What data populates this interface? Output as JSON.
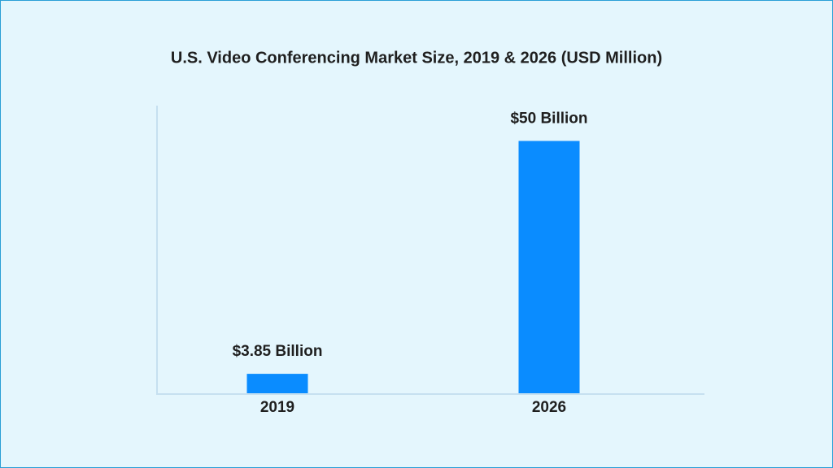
{
  "chart_data": {
    "type": "bar",
    "title": "U.S. Video Conferencing Market Size, 2019 & 2026 (USD Million)",
    "categories": [
      "2019",
      "2026"
    ],
    "values": [
      3.85,
      50
    ],
    "value_labels": [
      "$3.85 Billion",
      "$50 Billion"
    ],
    "color": "#0a8cff",
    "ylim": [
      0,
      57
    ]
  }
}
